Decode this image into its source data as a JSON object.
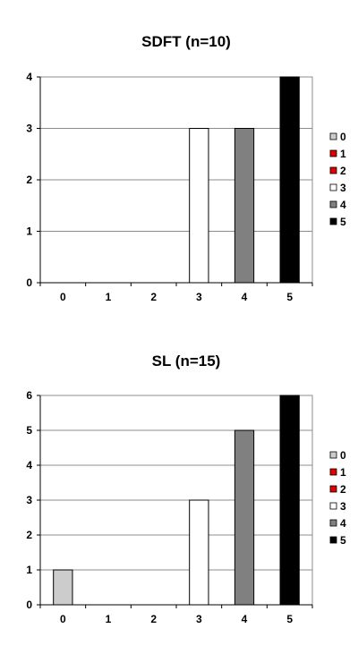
{
  "chart_data": [
    {
      "type": "bar",
      "title": "SDFT (n=10)",
      "xlabel": "",
      "ylabel": "",
      "categories": [
        "0",
        "1",
        "2",
        "3",
        "4",
        "5"
      ],
      "values": [
        0,
        0,
        0,
        3,
        3,
        4
      ],
      "ylim": [
        0,
        4
      ],
      "yticks": [
        0,
        1,
        2,
        3,
        4
      ],
      "grid": true,
      "legend_position": "right",
      "legend": [
        "0",
        "1",
        "2",
        "3",
        "4",
        "5"
      ],
      "colors": [
        "#cccccc",
        "#e00000",
        "#e00000",
        "#ffffff",
        "#808080",
        "#000000"
      ]
    },
    {
      "type": "bar",
      "title": "SL (n=15)",
      "xlabel": "",
      "ylabel": "",
      "categories": [
        "0",
        "1",
        "2",
        "3",
        "4",
        "5"
      ],
      "values": [
        1,
        0,
        0,
        3,
        5,
        6
      ],
      "ylim": [
        0,
        6
      ],
      "yticks": [
        0,
        1,
        2,
        3,
        4,
        5,
        6
      ],
      "grid": true,
      "legend_position": "right",
      "legend": [
        "0",
        "1",
        "2",
        "3",
        "4",
        "5"
      ],
      "colors": [
        "#cccccc",
        "#e00000",
        "#e00000",
        "#ffffff",
        "#808080",
        "#000000"
      ]
    }
  ]
}
